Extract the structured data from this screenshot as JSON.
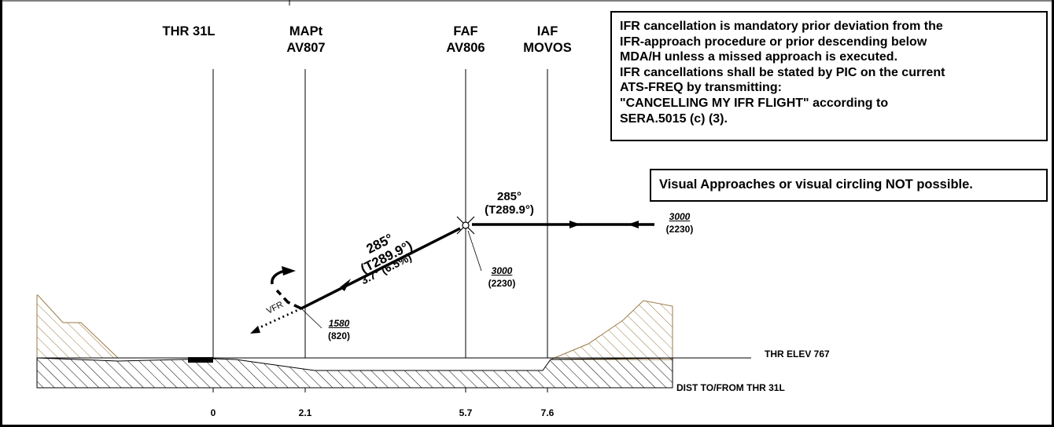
{
  "fixes": [
    {
      "id": "thr",
      "name": "THR 31L",
      "subname": ""
    },
    {
      "id": "mapt",
      "name": "MAPt",
      "subname": "AV807"
    },
    {
      "id": "faf",
      "name": "FAF",
      "subname": "AV806"
    },
    {
      "id": "iaf",
      "name": "IAF",
      "subname": "MOVOS"
    }
  ],
  "notes": {
    "ifr_cancellation": [
      "IFR cancellation is mandatory prior deviation from the",
      "IFR-approach procedure or prior descending below",
      "MDA/H unless a missed approach is executed.",
      "IFR cancellations shall be stated by PIC on the current",
      "ATS-FREQ by transmitting:",
      "\"CANCELLING MY IFR FLIGHT\" according to",
      "SERA.5015 (c) (3)."
    ],
    "visual": "Visual Approaches or visual circling NOT possible."
  },
  "courses": {
    "iaf_to_faf": {
      "magnetic": "285°",
      "true": "(T289.9°)"
    },
    "final": {
      "magnetic": "285°",
      "true": "(T289.9°)",
      "gradient": "3.7° (6.5%)"
    }
  },
  "altitudes": {
    "iaf": {
      "alt": "3000",
      "height": "(2230)"
    },
    "faf": {
      "alt": "3000",
      "height": "(2230)"
    },
    "mapt": {
      "alt": "1580",
      "height": "(820)"
    }
  },
  "vfr_label": "VFR",
  "threshold_elevation": "THR ELEV 767",
  "distance_axis": {
    "label": "DIST TO/FROM THR 31L",
    "ticks": [
      "0",
      "2.1",
      "5.7",
      "7.6"
    ]
  },
  "colors": {
    "terrain_hatch": "#9a7a44",
    "ink": "#000000"
  }
}
